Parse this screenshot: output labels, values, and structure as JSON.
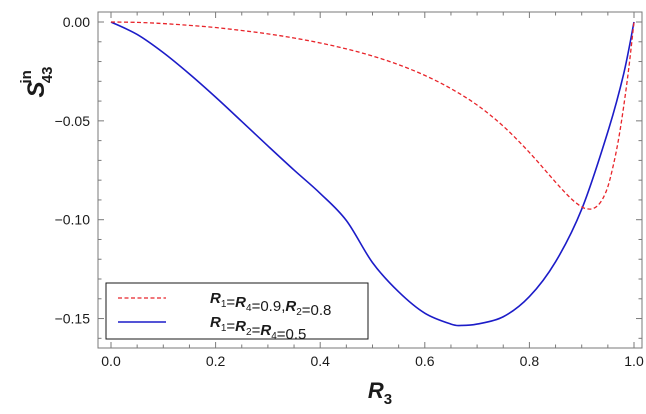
{
  "chart_data": {
    "type": "line",
    "xlabel": {
      "main": "R",
      "sub": "3"
    },
    "ylabel": {
      "main": "S",
      "sup": "in",
      "sub": "43"
    },
    "xlim": [
      0.0,
      1.0
    ],
    "ylim": [
      -0.163,
      0.008
    ],
    "x_ticks": [
      0.0,
      0.2,
      0.4,
      0.6,
      0.8,
      1.0
    ],
    "x_tick_labels": [
      "0.0",
      "0.2",
      "0.4",
      "0.6",
      "0.8",
      "1.0"
    ],
    "y_ticks": [
      0.0,
      -0.05,
      -0.1,
      -0.15
    ],
    "y_tick_labels": [
      "0.00",
      "−0.05",
      "−0.10",
      "−0.15"
    ],
    "grid": false,
    "legend_position": "bottom-left",
    "series": [
      {
        "name": "R1=R4=0.9,R2=0.8",
        "legend_parts": [
          [
            "R",
            "1"
          ],
          [
            "=",
            ""
          ],
          [
            "R",
            "4"
          ],
          [
            "=0.9,",
            ""
          ],
          [
            "R",
            "2"
          ],
          [
            "=0.8",
            ""
          ]
        ],
        "color": "#e8242a",
        "dash": "dashed",
        "x": [
          0.0,
          0.05,
          0.1,
          0.15,
          0.2,
          0.25,
          0.3,
          0.35,
          0.4,
          0.45,
          0.5,
          0.55,
          0.6,
          0.65,
          0.7,
          0.75,
          0.8,
          0.85,
          0.88,
          0.9,
          0.91,
          0.92,
          0.93,
          0.94,
          0.95,
          0.96,
          0.97,
          0.98,
          0.99,
          1.0
        ],
        "y": [
          0.0,
          -0.0002,
          -0.0008,
          -0.0017,
          -0.0028,
          -0.0043,
          -0.006,
          -0.0081,
          -0.0106,
          -0.0136,
          -0.0172,
          -0.0216,
          -0.027,
          -0.0337,
          -0.042,
          -0.0527,
          -0.066,
          -0.081,
          -0.0894,
          -0.0935,
          -0.0945,
          -0.0945,
          -0.093,
          -0.0895,
          -0.0833,
          -0.073,
          -0.06,
          -0.0432,
          -0.0234,
          0.0
        ]
      },
      {
        "name": "R1=R2=R4=0.5",
        "legend_parts": [
          [
            "R",
            "1"
          ],
          [
            "=",
            ""
          ],
          [
            "R",
            "2"
          ],
          [
            "=",
            ""
          ],
          [
            "R",
            "4"
          ],
          [
            "=0.5",
            ""
          ]
        ],
        "color": "#1c1cc8",
        "dash": "solid",
        "x": [
          0.0,
          0.05,
          0.1,
          0.15,
          0.2,
          0.25,
          0.3,
          0.35,
          0.4,
          0.45,
          0.5,
          0.55,
          0.6,
          0.65,
          0.67,
          0.7,
          0.75,
          0.8,
          0.85,
          0.9,
          0.95,
          0.98,
          1.0
        ],
        "y": [
          0.0,
          -0.0063,
          -0.0155,
          -0.0263,
          -0.038,
          -0.0503,
          -0.0627,
          -0.0749,
          -0.0867,
          -0.1004,
          -0.1217,
          -0.1365,
          -0.1473,
          -0.1528,
          -0.1535,
          -0.1528,
          -0.1491,
          -0.1389,
          -0.1213,
          -0.0947,
          -0.0555,
          -0.0265,
          0.0
        ]
      }
    ]
  }
}
